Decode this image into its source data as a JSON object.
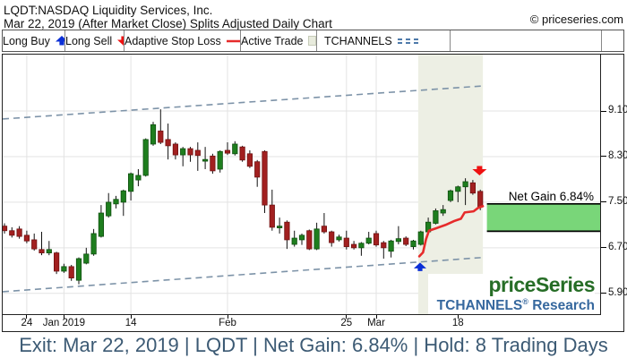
{
  "header": {
    "title": "LQDT:NASDAQ Liquidity Services, Inc.",
    "subtitle": "Mar 22, 2019 (After Market Close)  Splits Adjusted Daily Chart",
    "copyright": "© priceseries.com"
  },
  "legend": {
    "items": [
      {
        "label": "Long Buy",
        "symbol": "blue-up-arrow"
      },
      {
        "label": "Long Sell",
        "symbol": "red-down-arrow"
      },
      {
        "label": "Adaptive Stop Loss",
        "symbol": "red-line"
      },
      {
        "label": "Active Trade",
        "symbol": "band-swatch"
      },
      {
        "label": "TCHANNELS",
        "symbol": "dashed-channel-lines"
      }
    ]
  },
  "watermark": {
    "brand": "priceSeries",
    "channels": "TCHANNELS",
    "reg": "®",
    "research": " Research"
  },
  "footer": {
    "text": "Exit: Mar 22, 2019 | LQDT | Net Gain: 6.84% | Hold: 8 Trading Days"
  },
  "colors": {
    "candle_up": "#1e7e1e",
    "candle_up_stroke": "#0f4f0f",
    "candle_down": "#a22020",
    "candle_down_stroke": "#701212",
    "wick": "#111111",
    "grid": "#e3e3e3",
    "trade_band": "#edefe4",
    "channel": "#7d93a8",
    "stop_loss": "#e62b2b",
    "net_gain_box": "#79d679",
    "buy_arrow": "#0b2fd6",
    "sell_arrow": "#ee1111",
    "axis_text": "#111111",
    "footer_text": "#3c5a74",
    "brand_green": "#266d26",
    "research_blue": "#36689e"
  },
  "chart_data": {
    "type": "candlestick",
    "symbol": "LQDT",
    "ylim": [
      5.52,
      10.09
    ],
    "yticks": [
      {
        "price": 9.1,
        "label": "9.10"
      },
      {
        "price": 8.3,
        "label": "8.30"
      },
      {
        "price": 7.5,
        "label": "7.50"
      },
      {
        "price": 6.7,
        "label": "6.70"
      },
      {
        "price": 5.9,
        "label": "5.90"
      }
    ],
    "xticks": [
      {
        "i": 3,
        "label": "24"
      },
      {
        "i": 8,
        "label": "Jan 2019"
      },
      {
        "i": 17,
        "label": "14"
      },
      {
        "i": 30,
        "label": "Feb"
      },
      {
        "i": 46,
        "label": "25"
      },
      {
        "i": 50,
        "label": "Mar"
      },
      {
        "i": 61,
        "label": "18"
      }
    ],
    "candles": [
      [
        7.08,
        7.13,
        6.95,
        7.0
      ],
      [
        7.0,
        7.06,
        6.88,
        6.92
      ],
      [
        7.03,
        7.08,
        6.86,
        6.9
      ],
      [
        6.92,
        7.0,
        6.78,
        6.82
      ],
      [
        6.84,
        6.95,
        6.65,
        6.68
      ],
      [
        6.67,
        6.98,
        6.57,
        6.61
      ],
      [
        6.61,
        6.82,
        6.57,
        6.67
      ],
      [
        6.61,
        6.63,
        6.24,
        6.29
      ],
      [
        6.29,
        6.42,
        6.26,
        6.37
      ],
      [
        6.37,
        6.4,
        6.12,
        6.17
      ],
      [
        6.13,
        6.53,
        6.06,
        6.51
      ],
      [
        6.43,
        6.7,
        6.41,
        6.59
      ],
      [
        6.59,
        7.03,
        6.56,
        6.95
      ],
      [
        6.9,
        7.45,
        6.88,
        7.31
      ],
      [
        7.26,
        7.66,
        7.23,
        7.5
      ],
      [
        7.47,
        7.61,
        7.39,
        7.55
      ],
      [
        7.5,
        7.72,
        7.26,
        7.7
      ],
      [
        7.69,
        8.02,
        7.53,
        8.0
      ],
      [
        7.89,
        8.08,
        7.78,
        7.97
      ],
      [
        7.97,
        8.62,
        7.95,
        8.6
      ],
      [
        8.52,
        8.91,
        8.49,
        8.86
      ],
      [
        8.75,
        9.13,
        8.52,
        8.55
      ],
      [
        8.6,
        8.88,
        8.25,
        8.49
      ],
      [
        8.52,
        8.55,
        8.25,
        8.33
      ],
      [
        8.33,
        8.47,
        8.13,
        8.44
      ],
      [
        8.44,
        8.47,
        8.21,
        8.33
      ],
      [
        8.41,
        8.55,
        8.05,
        8.32
      ],
      [
        8.22,
        8.47,
        8.08,
        8.25
      ],
      [
        8.31,
        8.35,
        8.0,
        8.05
      ],
      [
        8.08,
        8.41,
        8.02,
        8.39
      ],
      [
        8.41,
        8.55,
        8.33,
        8.36
      ],
      [
        8.35,
        8.57,
        8.32,
        8.52
      ],
      [
        8.47,
        8.49,
        8.21,
        8.24
      ],
      [
        8.35,
        8.41,
        8.1,
        8.13
      ],
      [
        8.21,
        8.24,
        7.77,
        7.94
      ],
      [
        8.39,
        8.41,
        7.31,
        7.45
      ],
      [
        7.45,
        7.72,
        7.0,
        7.06
      ],
      [
        7.05,
        7.23,
        6.95,
        7.08
      ],
      [
        7.15,
        7.18,
        6.68,
        6.84
      ],
      [
        6.76,
        7.0,
        6.72,
        6.87
      ],
      [
        6.84,
        6.95,
        6.75,
        6.92
      ],
      [
        7.0,
        7.02,
        6.66,
        6.68
      ],
      [
        6.68,
        7.14,
        6.66,
        7.03
      ],
      [
        7.08,
        7.31,
        6.95,
        6.98
      ],
      [
        6.98,
        7.0,
        6.72,
        6.79
      ],
      [
        6.84,
        6.93,
        6.81,
        6.89
      ],
      [
        6.87,
        7.0,
        6.67,
        6.72
      ],
      [
        6.76,
        6.82,
        6.67,
        6.7
      ],
      [
        6.7,
        6.8,
        6.56,
        6.78
      ],
      [
        6.78,
        6.98,
        6.76,
        6.87
      ],
      [
        6.95,
        7.0,
        6.72,
        6.75
      ],
      [
        6.79,
        6.82,
        6.51,
        6.7
      ],
      [
        6.64,
        6.84,
        6.53,
        6.82
      ],
      [
        6.81,
        7.08,
        6.76,
        6.86
      ],
      [
        6.87,
        6.9,
        6.73,
        6.76
      ],
      [
        6.72,
        6.84,
        6.67,
        6.82
      ],
      [
        6.76,
        7.0,
        6.74,
        6.98
      ],
      [
        6.98,
        7.23,
        6.95,
        7.15
      ],
      [
        7.13,
        7.39,
        7.11,
        7.35
      ],
      [
        7.31,
        7.45,
        7.26,
        7.37
      ],
      [
        7.53,
        7.72,
        7.5,
        7.7
      ],
      [
        7.69,
        7.79,
        7.5,
        7.77
      ],
      [
        7.77,
        7.92,
        7.45,
        7.86
      ],
      [
        7.84,
        7.89,
        7.63,
        7.66
      ],
      [
        7.69,
        7.72,
        7.36,
        7.42
      ]
    ],
    "channel_upper": {
      "i1": -0.24,
      "p1": 8.96,
      "i2": 64.35,
      "p2": 9.54
    },
    "channel_lower": {
      "i1": -0.24,
      "p1": 5.93,
      "i2": 64.35,
      "p2": 6.53
    },
    "stop_loss": [
      [
        55.8,
        6.55
      ],
      [
        56.3,
        6.62
      ],
      [
        56.7,
        6.85
      ],
      [
        57.1,
        7.0
      ],
      [
        58.0,
        7.04
      ],
      [
        59.3,
        7.1
      ],
      [
        60.5,
        7.17
      ],
      [
        61.4,
        7.21
      ],
      [
        61.9,
        7.32
      ],
      [
        63.1,
        7.34
      ],
      [
        63.7,
        7.4
      ],
      [
        64.35,
        7.43
      ]
    ],
    "trade_band": {
      "start_i": 55.65,
      "end_i": 64.35
    },
    "markers": {
      "buy": {
        "i": 55.9,
        "tip_price": 6.44,
        "direction": "up"
      },
      "sell": {
        "i": 63.9,
        "tip_price": 7.97,
        "direction": "down"
      }
    },
    "net_gain": {
      "label": "Net Gain 6.84%",
      "entry_price": 6.99,
      "exit_price": 7.47,
      "percent": 6.84
    }
  }
}
